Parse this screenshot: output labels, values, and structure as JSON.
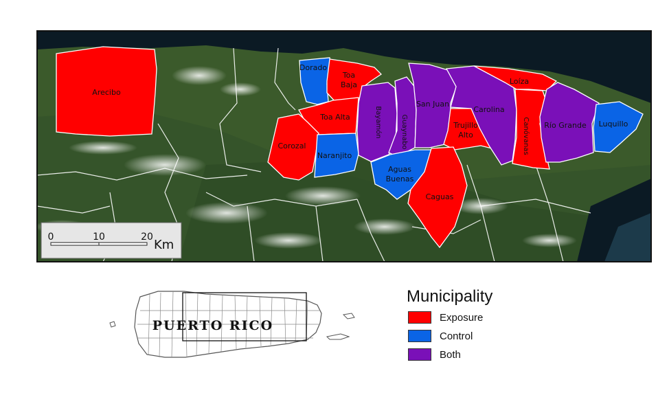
{
  "map": {
    "municipalities": [
      {
        "id": "arecibo",
        "name": "Arecibo",
        "category": "Exposure"
      },
      {
        "id": "dorado",
        "name": "Dorado",
        "category": "Control"
      },
      {
        "id": "toa-baja",
        "name": "Toa Baja",
        "category": "Exposure"
      },
      {
        "id": "toa-alta",
        "name": "Toa Alta",
        "category": "Exposure"
      },
      {
        "id": "corozal",
        "name": "Corozal",
        "category": "Exposure"
      },
      {
        "id": "naranjito",
        "name": "Naranjito",
        "category": "Control"
      },
      {
        "id": "bayamon",
        "name": "Bayamón",
        "category": "Both"
      },
      {
        "id": "guaynabo",
        "name": "Guaynabo",
        "category": "Both"
      },
      {
        "id": "san-juan",
        "name": "San Juan",
        "category": "Both"
      },
      {
        "id": "aguas-buenas",
        "name": "Aguas Buenas",
        "category": "Control"
      },
      {
        "id": "trujillo-alto",
        "name": "Trujillo Alto",
        "category": "Exposure"
      },
      {
        "id": "caguas",
        "name": "Caguas",
        "category": "Exposure"
      },
      {
        "id": "carolina",
        "name": "Carolina",
        "category": "Both"
      },
      {
        "id": "loiza",
        "name": "Loíza",
        "category": "Exposure"
      },
      {
        "id": "canovanas",
        "name": "Canóvanas",
        "category": "Exposure"
      },
      {
        "id": "rio-grande",
        "name": "Río Grande",
        "category": "Both"
      },
      {
        "id": "luquillo",
        "name": "Luquillo",
        "category": "Control"
      }
    ],
    "labels": {
      "arecibo": "Arecibo",
      "dorado": "Dorado",
      "toa_baja_1": "Toa",
      "toa_baja_2": "Baja",
      "toa_alta": "Toa Alta",
      "corozal": "Corozal",
      "naranjito": "Naranjito",
      "bayamon": "Bayamón",
      "guaynabo": "Guaynabo",
      "san_juan": "San Juan",
      "aguas_buenas_1": "Aguas",
      "aguas_buenas_2": "Buenas",
      "trujillo_alto_1": "Trujillo",
      "trujillo_alto_2": "Alto",
      "caguas": "Caguas",
      "carolina": "Carolina",
      "loiza": "Loíza",
      "canovanas": "Canóvanas",
      "rio_grande": "Río Grande",
      "luquillo": "Luquillo"
    },
    "scale_bar": {
      "ticks": [
        "0",
        "10",
        "20"
      ],
      "unit": "Km"
    }
  },
  "inset": {
    "label": "PUERTO RICO"
  },
  "legend": {
    "title": "Municipality",
    "items": [
      {
        "label": "Exposure",
        "color": "#ff0000"
      },
      {
        "label": "Control",
        "color": "#0a64e6"
      },
      {
        "label": "Both",
        "color": "#7a10b8"
      }
    ]
  },
  "colors": {
    "exposure": "#ff0000",
    "control": "#0a64e6",
    "both": "#7a10b8",
    "ocean": "#0b1a24",
    "land": "#3d5a2c"
  }
}
